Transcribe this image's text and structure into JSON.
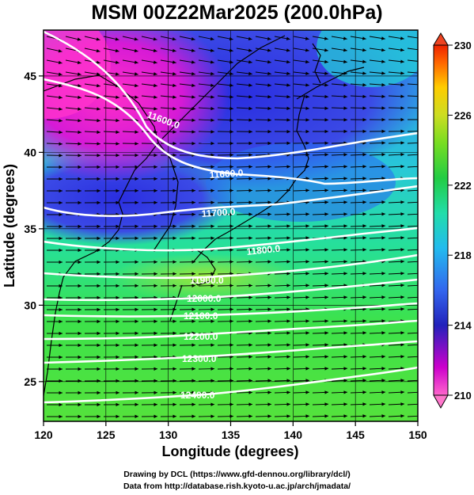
{
  "title": "MSM 00Z22Mar2025 (200.0hPa)",
  "axes": {
    "xlabel": "Longitude (degrees)",
    "ylabel": "Latitude  (degrees)",
    "x_ticks": [
      "120",
      "125",
      "130",
      "135",
      "140",
      "145",
      "150"
    ],
    "y_ticks": [
      "25",
      "30",
      "35",
      "40",
      "45"
    ],
    "x_range": [
      120,
      150
    ],
    "y_range": [
      22.4,
      48
    ]
  },
  "colorbar": {
    "ticks": [
      "230",
      "226",
      "222",
      "218",
      "214",
      "210"
    ],
    "range": [
      210,
      230
    ],
    "colors": [
      "#ff66cc",
      "#cc00cc",
      "#3333dd",
      "#22aaee",
      "#22ddaa",
      "#22cc44",
      "#99dd22",
      "#ffdd00",
      "#ff6600",
      "#ee2200"
    ]
  },
  "contours": {
    "labels": [
      "11600.0",
      "11600.0",
      "11700.0",
      "11800.0",
      "11900.0",
      "12000.0",
      "12100.0",
      "12200.0",
      "12300.0",
      "12400.0"
    ]
  },
  "footer": {
    "line1": "Drawing by DCL (https://www.gfd-dennou.org/library/dcl/)",
    "line2": "Data from http://database.rish.kyoto-u.ac.jp/arch/jmadata/"
  }
}
